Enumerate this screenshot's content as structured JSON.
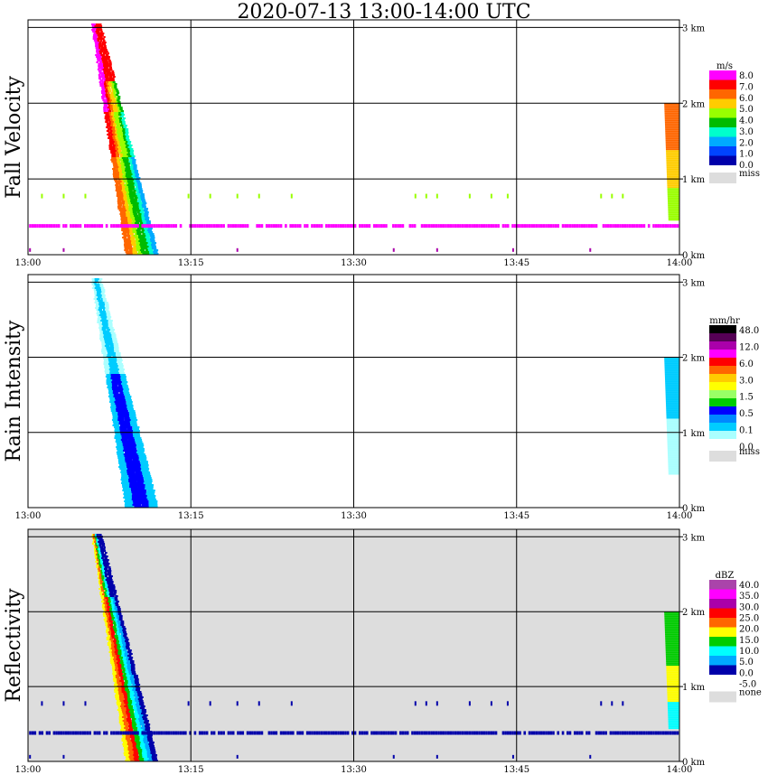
{
  "title": "2020-07-13   13:00-14:00 UTC",
  "x_ticks": [
    "13:00",
    "13:15",
    "13:30",
    "13:45",
    "14:00"
  ],
  "y_ticks": [
    "0 km",
    "1 km",
    "2 km",
    "3 km"
  ],
  "chart_data": [
    {
      "type": "heatmap",
      "ylabel": "Fall Velocity",
      "xlim_minutes": [
        0,
        60
      ],
      "ylim_km": [
        0,
        3.1
      ],
      "grid": true,
      "legend": {
        "unit": "m/s",
        "labels": [
          "8.0",
          "7.0",
          "6.0",
          "5.0",
          "4.0",
          "3.0",
          "2.0",
          "1.0",
          "0.0",
          "miss"
        ],
        "colors": [
          "#ff00ff",
          "#ff0000",
          "#ff6600",
          "#ffcc00",
          "#99ff00",
          "#00bb00",
          "#00ffcc",
          "#00aaff",
          "#0044ff",
          "#0000aa",
          "#dddddd"
        ]
      },
      "features": [
        {
          "name": "rain shaft",
          "start_min": 6.0,
          "end_min": 10.0,
          "top_km": 3.1
        },
        {
          "name": "dense magenta band",
          "height_km": 0.38,
          "value": 8.0
        },
        {
          "name": "late echo",
          "start_min": 58.5,
          "end_min": 60,
          "top_km": 2.0
        }
      ]
    },
    {
      "type": "heatmap",
      "ylabel": "Rain Intensity",
      "xlim_minutes": [
        0,
        60
      ],
      "ylim_km": [
        0,
        3.1
      ],
      "grid": true,
      "legend": {
        "unit": "mm/hr",
        "labels": [
          "48.0",
          "12.0",
          "6.0",
          "3.0",
          "1.5",
          "0.5",
          "0.1",
          "0.0",
          "miss"
        ],
        "colors": [
          "#000000",
          "#550055",
          "#aa00aa",
          "#ff00ff",
          "#ff0000",
          "#ff6600",
          "#ffcc00",
          "#ffff00",
          "#99ff66",
          "#00cc00",
          "#0000ff",
          "#0088ff",
          "#00ccff",
          "#aaffff",
          "#ffffff",
          "#dddddd"
        ]
      },
      "features": [
        {
          "name": "rain shaft",
          "start_min": 6.0,
          "end_min": 10.0,
          "top_km": 3.1,
          "peak_mm_hr": 0.5
        },
        {
          "name": "late echo",
          "start_min": 58.5,
          "end_min": 60,
          "top_km": 2.0
        }
      ]
    },
    {
      "type": "heatmap",
      "ylabel": "Reflectivity",
      "xlim_minutes": [
        0,
        60
      ],
      "ylim_km": [
        0,
        3.1
      ],
      "grid": true,
      "legend": {
        "unit": "dBZ",
        "labels": [
          "40.0",
          "35.0",
          "30.0",
          "25.0",
          "20.0",
          "15.0",
          "10.0",
          "5.0",
          "0.0",
          "-5.0",
          "none"
        ],
        "colors": [
          "#aa44aa",
          "#ff00ff",
          "#aa00aa",
          "#ff0000",
          "#ff6600",
          "#ffff00",
          "#00cc00",
          "#00ffff",
          "#00aaff",
          "#0000aa",
          "#ffffff",
          "#dddddd"
        ]
      },
      "features": [
        {
          "name": "rain shaft",
          "start_min": 6.0,
          "end_min": 10.0,
          "top_km": 3.1,
          "peak_dbz": 25.0
        },
        {
          "name": "dense low band",
          "height_km": 0.38,
          "value": -5.0
        },
        {
          "name": "late echo",
          "start_min": 58.5,
          "end_min": 60,
          "top_km": 2.0
        }
      ]
    }
  ]
}
